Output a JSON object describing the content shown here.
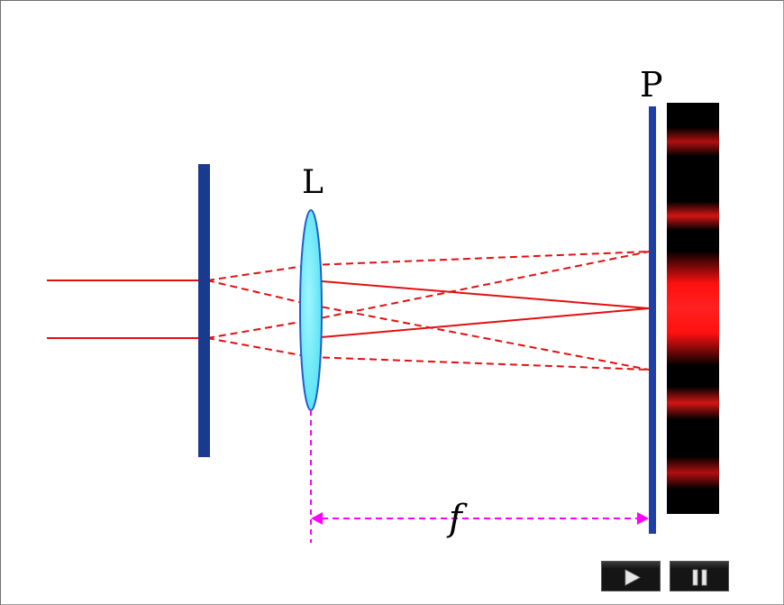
{
  "labels": {
    "lens": "L",
    "screen": "P",
    "focal_length": "f"
  },
  "colors": {
    "slit_plate": "#1a3a8f",
    "screen_bar": "#1f3fa8",
    "lens_fill": "#63e8f5",
    "lens_stroke": "#1e5fd0",
    "ray": "#e01010",
    "dimension": "#ff00ff",
    "fringe_dark": "#000000",
    "fringe_bright": "#ff0000"
  },
  "controls": {
    "play_icon": "play-icon",
    "pause_icon": "pause-icon"
  }
}
